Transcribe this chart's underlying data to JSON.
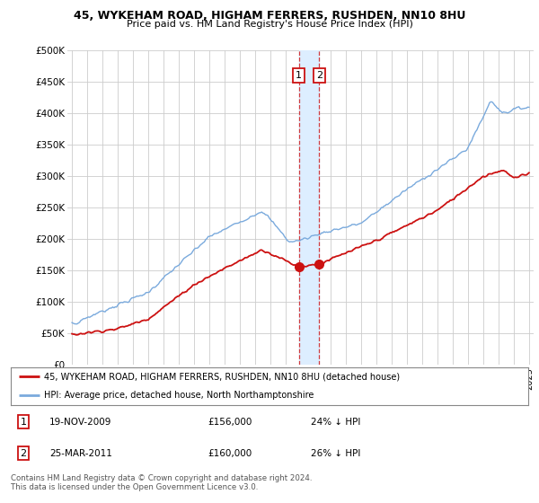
{
  "title1": "45, WYKEHAM ROAD, HIGHAM FERRERS, RUSHDEN, NN10 8HU",
  "title2": "Price paid vs. HM Land Registry's House Price Index (HPI)",
  "ylim": [
    0,
    500000
  ],
  "yticks": [
    0,
    50000,
    100000,
    150000,
    200000,
    250000,
    300000,
    350000,
    400000,
    450000,
    500000
  ],
  "ytick_labels": [
    "£0",
    "£50K",
    "£100K",
    "£150K",
    "£200K",
    "£250K",
    "£300K",
    "£350K",
    "£400K",
    "£450K",
    "£500K"
  ],
  "hpi_color": "#7aaadd",
  "price_color": "#cc1111",
  "sale1_date": 2009.89,
  "sale1_price": 156000,
  "sale1_label": "1",
  "sale2_date": 2011.23,
  "sale2_price": 160000,
  "sale2_label": "2",
  "legend_line1": "45, WYKEHAM ROAD, HIGHAM FERRERS, RUSHDEN, NN10 8HU (detached house)",
  "legend_line2": "HPI: Average price, detached house, North Northamptonshire",
  "table_row1": [
    "1",
    "19-NOV-2009",
    "£156,000",
    "24% ↓ HPI"
  ],
  "table_row2": [
    "2",
    "25-MAR-2011",
    "£160,000",
    "26% ↓ HPI"
  ],
  "footer": "Contains HM Land Registry data © Crown copyright and database right 2024.\nThis data is licensed under the Open Government Licence v3.0.",
  "background_color": "#ffffff",
  "grid_color": "#cccccc",
  "span_color": "#ddeeff"
}
